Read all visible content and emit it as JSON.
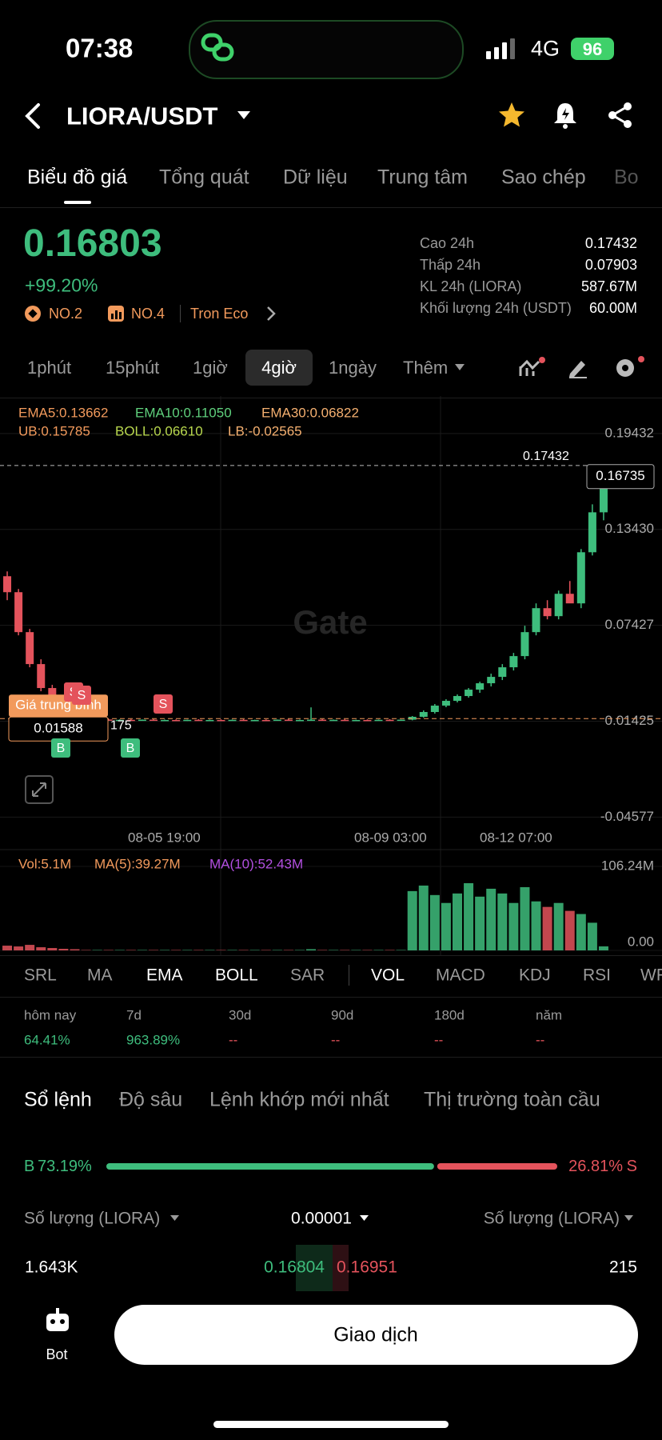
{
  "status": {
    "time": "07:38",
    "network": "4G",
    "battery": "96"
  },
  "header": {
    "pair": "LIORA/USDT"
  },
  "tabs": [
    "Biểu đồ giá",
    "Tổng quát",
    "Dữ liệu",
    "Trung tâm",
    "Sao chép",
    "Bo"
  ],
  "price": {
    "last": "0.16803",
    "change": "+99.20%",
    "badges": [
      "NO.2",
      "NO.4",
      "Tron Eco"
    ]
  },
  "stats": [
    {
      "label": "Cao 24h",
      "value": "0.17432"
    },
    {
      "label": "Thấp 24h",
      "value": "0.07903"
    },
    {
      "label": "KL 24h (LIORA)",
      "value": "587.67M"
    },
    {
      "label": "Khối lượng 24h (USDT)",
      "value": "60.00M"
    }
  ],
  "intervals": [
    "1phút",
    "15phút",
    "1giờ",
    "4giờ",
    "1ngày",
    "Thêm"
  ],
  "chart": {
    "indicator_labels": [
      "EMA5:0.13662",
      "EMA10:0.11050",
      "EMA30:0.06822",
      "UB:0.15785",
      "BOLL:0.06610",
      "LB:-0.02565"
    ],
    "watermark": "Gate",
    "ylim": [
      -0.0501,
      0.2153
    ],
    "yticks": [
      0.19432,
      {
        "value": 0.1343,
        "label": "0.13430"
      },
      0.07427,
      0.01425,
      -0.04577
    ],
    "dates": [
      "08-05 19:00",
      "08-09 03:00",
      "08-12 07:00"
    ],
    "high_line": 0.17432,
    "last_price": 0.16735,
    "avg_price_label": "Giá trung bình",
    "avg_price": 0.01588,
    "trade_marks": [
      "S",
      "S",
      "S",
      "B",
      "B"
    ],
    "partial_label": "175",
    "candles": [
      [
        0.105,
        0.108,
        0.09,
        0.095
      ],
      [
        0.095,
        0.097,
        0.068,
        0.07
      ],
      [
        0.07,
        0.072,
        0.048,
        0.05
      ],
      [
        0.05,
        0.053,
        0.033,
        0.035
      ],
      [
        0.035,
        0.037,
        0.022,
        0.024
      ],
      [
        0.024,
        0.026,
        0.016,
        0.018
      ],
      [
        0.018,
        0.02,
        0.015,
        0.016
      ],
      [
        0.0155,
        0.0158,
        0.0148,
        0.015
      ],
      [
        0.015,
        0.0156,
        0.0146,
        0.0153
      ],
      [
        0.0153,
        0.0157,
        0.0147,
        0.0149
      ],
      [
        0.0149,
        0.0154,
        0.0145,
        0.0151
      ],
      [
        0.0151,
        0.0155,
        0.0146,
        0.0148
      ],
      [
        0.0148,
        0.0153,
        0.0145,
        0.0152
      ],
      [
        0.0152,
        0.0156,
        0.0147,
        0.0149
      ],
      [
        0.0149,
        0.0153,
        0.0145,
        0.015
      ],
      [
        0.015,
        0.0154,
        0.0146,
        0.0147
      ],
      [
        0.0147,
        0.0152,
        0.0144,
        0.0151
      ],
      [
        0.0151,
        0.0155,
        0.0146,
        0.0148
      ],
      [
        0.0148,
        0.0153,
        0.0145,
        0.015
      ],
      [
        0.015,
        0.0154,
        0.0146,
        0.0149
      ],
      [
        0.0149,
        0.0153,
        0.0145,
        0.0151
      ],
      [
        0.0151,
        0.0155,
        0.0147,
        0.0148
      ],
      [
        0.0148,
        0.0152,
        0.0145,
        0.015
      ],
      [
        0.015,
        0.0154,
        0.0146,
        0.0149
      ],
      [
        0.0149,
        0.0153,
        0.0145,
        0.0152
      ],
      [
        0.0152,
        0.0156,
        0.0147,
        0.0149
      ],
      [
        0.0149,
        0.0153,
        0.0145,
        0.015
      ],
      [
        0.015,
        0.0229,
        0.0146,
        0.0152
      ],
      [
        0.0152,
        0.0156,
        0.0147,
        0.0149
      ],
      [
        0.0149,
        0.0153,
        0.0145,
        0.0151
      ],
      [
        0.0151,
        0.0155,
        0.0146,
        0.0148
      ],
      [
        0.0148,
        0.0152,
        0.0145,
        0.015
      ],
      [
        0.015,
        0.0154,
        0.0146,
        0.0149
      ],
      [
        0.0149,
        0.0153,
        0.0145,
        0.0151
      ],
      [
        0.0151,
        0.0155,
        0.0147,
        0.0148
      ],
      [
        0.0148,
        0.0153,
        0.0145,
        0.0152
      ],
      [
        0.0152,
        0.0175,
        0.0148,
        0.017
      ],
      [
        0.017,
        0.021,
        0.0165,
        0.02
      ],
      [
        0.02,
        0.025,
        0.019,
        0.024
      ],
      [
        0.024,
        0.028,
        0.023,
        0.027
      ],
      [
        0.027,
        0.031,
        0.026,
        0.03
      ],
      [
        0.03,
        0.035,
        0.029,
        0.034
      ],
      [
        0.034,
        0.039,
        0.032,
        0.038
      ],
      [
        0.038,
        0.044,
        0.036,
        0.042
      ],
      [
        0.042,
        0.05,
        0.04,
        0.048
      ],
      [
        0.048,
        0.057,
        0.046,
        0.055
      ],
      [
        0.055,
        0.074,
        0.053,
        0.07
      ],
      [
        0.07,
        0.088,
        0.068,
        0.085
      ],
      [
        0.085,
        0.09,
        0.078,
        0.08
      ],
      [
        0.08,
        0.096,
        0.078,
        0.094
      ],
      [
        0.094,
        0.102,
        0.09,
        0.088
      ],
      [
        0.088,
        0.122,
        0.085,
        0.12
      ],
      [
        0.12,
        0.15,
        0.118,
        0.145
      ],
      [
        0.145,
        0.17432,
        0.14,
        0.16735
      ]
    ],
    "volume_labels": [
      "Vol:5.1M",
      "MA(5):39.27M",
      "MA(10):52.43M"
    ],
    "vol_ylim": [
      0,
      106.24
    ],
    "vol_yticks": [
      {
        "value": 106.24,
        "label": "106.24M"
      },
      {
        "value": 0,
        "label": "0.00"
      }
    ],
    "volumes": [
      6,
      5,
      7,
      4,
      3,
      2,
      1.5,
      0.5,
      0.5,
      0.5,
      0.5,
      0.5,
      0.5,
      0.5,
      0.5,
      0.5,
      0.5,
      0.5,
      0.5,
      0.5,
      0.5,
      0.5,
      0.5,
      0.5,
      0.5,
      0.5,
      0.5,
      1.5,
      0.5,
      0.5,
      0.5,
      0.5,
      0.5,
      0.5,
      0.5,
      0.5,
      75,
      82,
      70,
      60,
      72,
      85,
      68,
      78,
      72,
      60,
      80,
      62,
      55,
      60,
      50,
      46,
      35,
      5.1
    ]
  },
  "indicator_tabs": [
    "SRL",
    "MA",
    "EMA",
    "BOLL",
    "SAR",
    "VOL",
    "MACD",
    "KDJ",
    "RSI",
    "WR"
  ],
  "performance": [
    {
      "label": "hôm nay",
      "value": "64.41%"
    },
    {
      "label": "7d",
      "value": "963.89%"
    },
    {
      "label": "30d",
      "value": "--"
    },
    {
      "label": "90d",
      "value": "--"
    },
    {
      "label": "180d",
      "value": "--"
    },
    {
      "label": "năm",
      "value": "--"
    }
  ],
  "orderbook_tabs": [
    "Sổ lệnh",
    "Độ sâu",
    "Lệnh khớp mới nhất",
    "Thị trường toàn cầu"
  ],
  "ratio": {
    "names": [
      "B",
      "S"
    ],
    "values": [
      73.19,
      26.81
    ],
    "value_labels": [
      "73.19%",
      "26.81%"
    ]
  },
  "columns": [
    "Số lượng (LIORA)",
    "0.00001",
    "Số lượng (LIORA)"
  ],
  "row": [
    "1.643K",
    "0.16804",
    "0.16951",
    "215"
  ],
  "bottom": {
    "bot": "Bot",
    "trade": "Giao dịch"
  }
}
